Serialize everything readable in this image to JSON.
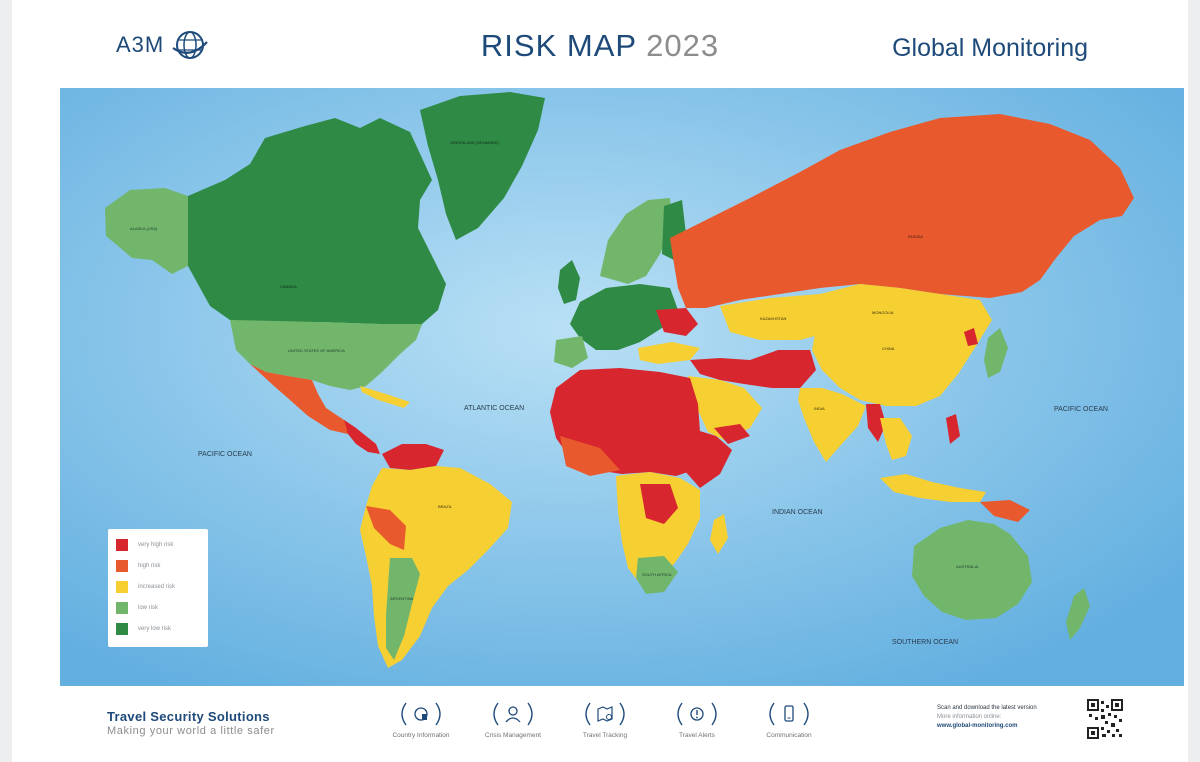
{
  "header": {
    "logo_text": "A3M",
    "title_main": "RISK MAP",
    "title_year": "2023",
    "brand": "Global Monitoring"
  },
  "colors": {
    "ocean": "#72b9e4",
    "very_high": "#d7262e",
    "high": "#e85a2d",
    "increased": "#f6cf32",
    "low": "#72b66c",
    "very_low": "#2e8a45",
    "brand_blue": "#1e4a7a"
  },
  "map": {
    "oceans": [
      "ATLANTIC OCEAN",
      "PACIFIC OCEAN",
      "INDIAN OCEAN",
      "SOUTHERN OCEAN",
      "PACIFIC OCEAN"
    ],
    "countries": {
      "alaska": "ALASKA (USA)",
      "canada": "CANADA",
      "usa": "UNITED STATES OF AMERICA",
      "greenland": "GREENLAND (DENMARK)",
      "russia": "RUSSIA",
      "kazakhstan": "KAZAKHSTAN",
      "mongolia": "MONGOLIA",
      "china": "CHINA",
      "india": "INDIA",
      "australia": "AUSTRALIA",
      "brazil": "BRAZIL",
      "argentina": "ARGENTINA",
      "south_africa": "SOUTH AFRICA"
    }
  },
  "legend": {
    "items": [
      {
        "label": "very high risk",
        "color": "#d7262e"
      },
      {
        "label": "high risk",
        "color": "#e85a2d"
      },
      {
        "label": "increased risk",
        "color": "#f6cf32"
      },
      {
        "label": "low risk",
        "color": "#72b66c"
      },
      {
        "label": "very low risk",
        "color": "#2e8a45"
      }
    ]
  },
  "footer": {
    "title": "Travel Security Solutions",
    "tagline": "Making your world a little safer",
    "services": [
      {
        "label": "Country Information",
        "icon": "country-info-icon"
      },
      {
        "label": "Crisis Management",
        "icon": "crisis-management-icon"
      },
      {
        "label": "Travel Tracking",
        "icon": "travel-tracking-icon"
      },
      {
        "label": "Travel Alerts",
        "icon": "travel-alerts-icon"
      },
      {
        "label": "Communication",
        "icon": "communication-icon"
      }
    ],
    "scan_text": "Scan and download the latest version",
    "more_info": "More information online:",
    "url": "www.global-monitoring.com"
  }
}
